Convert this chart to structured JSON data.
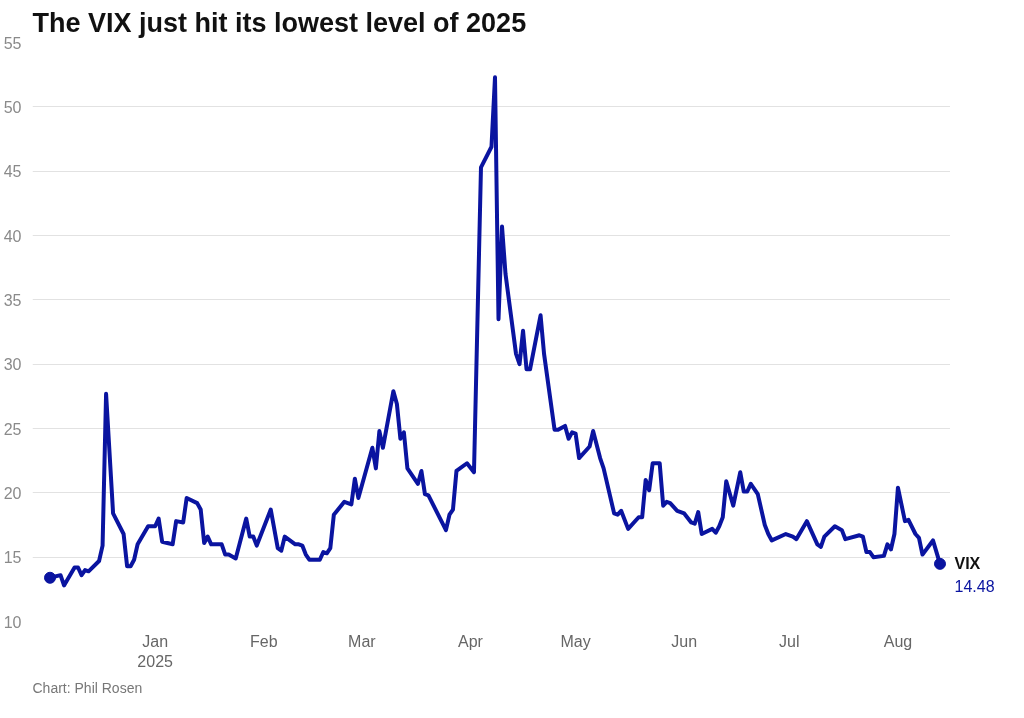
{
  "chart_data": {
    "type": "line",
    "title": "The VIX just hit its lowest level of 2025",
    "annotations": [
      "Chart: Phil Rosen"
    ],
    "x": [
      "2024-12-02",
      "2024-12-05",
      "2024-12-06",
      "2024-12-09",
      "2024-12-10",
      "2024-12-11",
      "2024-12-12",
      "2024-12-13",
      "2024-12-16",
      "2024-12-17",
      "2024-12-18",
      "2024-12-20",
      "2024-12-23",
      "2024-12-24",
      "2024-12-25",
      "2024-12-26",
      "2024-12-27",
      "2024-12-30",
      "2025-01-01",
      "2025-01-02",
      "2025-01-03",
      "2025-01-06",
      "2025-01-07",
      "2025-01-09",
      "2025-01-10",
      "2025-01-13",
      "2025-01-14",
      "2025-01-15",
      "2025-01-16",
      "2025-01-17",
      "2025-01-20",
      "2025-01-21",
      "2025-01-22",
      "2025-01-24",
      "2025-01-27",
      "2025-01-28",
      "2025-01-29",
      "2025-01-30",
      "2025-02-03",
      "2025-02-05",
      "2025-02-06",
      "2025-02-07",
      "2025-02-10",
      "2025-02-11",
      "2025-02-12",
      "2025-02-13",
      "2025-02-14",
      "2025-02-17",
      "2025-02-18",
      "2025-02-19",
      "2025-02-20",
      "2025-02-21",
      "2025-02-24",
      "2025-02-26",
      "2025-02-27",
      "2025-02-28",
      "2025-03-04",
      "2025-03-05",
      "2025-03-06",
      "2025-03-07",
      "2025-03-10",
      "2025-03-11",
      "2025-03-12",
      "2025-03-13",
      "2025-03-14",
      "2025-03-17",
      "2025-03-18",
      "2025-03-19",
      "2025-03-20",
      "2025-03-25",
      "2025-03-26",
      "2025-03-27",
      "2025-03-28",
      "2025-03-31",
      "2025-04-02",
      "2025-04-04",
      "2025-04-07",
      "2025-04-08",
      "2025-04-09",
      "2025-04-10",
      "2025-04-11",
      "2025-04-14",
      "2025-04-15",
      "2025-04-16",
      "2025-04-17",
      "2025-04-18",
      "2025-04-21",
      "2025-04-22",
      "2025-04-25",
      "2025-04-26",
      "2025-04-28",
      "2025-04-29",
      "2025-04-30",
      "2025-05-01",
      "2025-05-02",
      "2025-05-05",
      "2025-05-06",
      "2025-05-08",
      "2025-05-09",
      "2025-05-12",
      "2025-05-13",
      "2025-05-14",
      "2025-05-16",
      "2025-05-19",
      "2025-05-20",
      "2025-05-21",
      "2025-05-22",
      "2025-05-23",
      "2025-05-25",
      "2025-05-26",
      "2025-05-27",
      "2025-05-28",
      "2025-05-30",
      "2025-06-01",
      "2025-06-03",
      "2025-06-04",
      "2025-06-05",
      "2025-06-06",
      "2025-06-09",
      "2025-06-10",
      "2025-06-11",
      "2025-06-12",
      "2025-06-13",
      "2025-06-15",
      "2025-06-17",
      "2025-06-18",
      "2025-06-19",
      "2025-06-20",
      "2025-06-22",
      "2025-06-24",
      "2025-06-25",
      "2025-06-26",
      "2025-06-30",
      "2025-07-02",
      "2025-07-03",
      "2025-07-06",
      "2025-07-09",
      "2025-07-10",
      "2025-07-11",
      "2025-07-14",
      "2025-07-16",
      "2025-07-17",
      "2025-07-21",
      "2025-07-22",
      "2025-07-23",
      "2025-07-24",
      "2025-07-25",
      "2025-07-28",
      "2025-07-29",
      "2025-07-30",
      "2025-07-31",
      "2025-08-01",
      "2025-08-03",
      "2025-08-04",
      "2025-08-06",
      "2025-08-07",
      "2025-08-08",
      "2025-08-11",
      "2025-08-13"
    ],
    "series": [
      {
        "name": "VIX",
        "color": "#0a14a0",
        "values": [
          13.4,
          13.6,
          12.8,
          14.2,
          14.2,
          13.6,
          14.0,
          13.9,
          14.7,
          15.9,
          27.7,
          18.4,
          16.8,
          14.3,
          14.3,
          14.8,
          16.0,
          17.4,
          17.4,
          18.0,
          16.2,
          16.0,
          17.8,
          17.7,
          19.6,
          19.2,
          18.7,
          16.1,
          16.6,
          16.0,
          16.0,
          15.2,
          15.2,
          14.9,
          18.0,
          16.6,
          16.6,
          15.9,
          18.7,
          15.7,
          15.5,
          16.6,
          16.0,
          16.0,
          15.9,
          15.2,
          14.8,
          14.8,
          15.4,
          15.3,
          15.7,
          18.3,
          19.3,
          19.1,
          21.1,
          19.6,
          23.5,
          21.9,
          24.8,
          23.5,
          27.9,
          26.9,
          24.2,
          24.7,
          21.9,
          20.7,
          21.7,
          19.9,
          19.8,
          17.1,
          18.3,
          18.7,
          21.7,
          22.3,
          21.6,
          45.3,
          46.9,
          52.3,
          33.5,
          40.7,
          37.0,
          30.8,
          30.0,
          32.6,
          29.6,
          29.6,
          33.8,
          30.8,
          24.9,
          24.9,
          25.2,
          24.2,
          24.7,
          24.6,
          22.7,
          23.6,
          24.8,
          22.7,
          21.9,
          18.4,
          18.3,
          18.6,
          17.2,
          18.1,
          18.1,
          21.0,
          20.2,
          22.3,
          22.3,
          19.0,
          19.3,
          19.2,
          18.6,
          18.4,
          17.7,
          17.6,
          18.5,
          16.8,
          17.2,
          16.9,
          17.4,
          18.1,
          20.9,
          19.0,
          21.6,
          20.1,
          20.1,
          20.7,
          19.9,
          17.5,
          16.8,
          16.3,
          16.8,
          16.6,
          16.4,
          17.8,
          16.0,
          15.8,
          16.6,
          17.4,
          17.1,
          16.4,
          16.7,
          16.6,
          15.4,
          15.4,
          15.0,
          15.1,
          16.0,
          15.6,
          16.8,
          20.4,
          17.8,
          17.9,
          16.8,
          16.5,
          15.2,
          16.3,
          14.48
        ],
        "value_labels": [
          null,
          null,
          null,
          null,
          null,
          null,
          null,
          null,
          null,
          null,
          null,
          null,
          null,
          null,
          null,
          null,
          null,
          null,
          null,
          null,
          null,
          null,
          null,
          null,
          null,
          null,
          null,
          null,
          null,
          null,
          null,
          null,
          null,
          null,
          null,
          null,
          null,
          null,
          null,
          null,
          null,
          null,
          null,
          null,
          null,
          null,
          null,
          null,
          null,
          null,
          null,
          null,
          null,
          null,
          null,
          null,
          null,
          null,
          null,
          null,
          null,
          null,
          null,
          null,
          null,
          null,
          null,
          null,
          null,
          null,
          null,
          null,
          null,
          null,
          null,
          null,
          null,
          null,
          null,
          null,
          null,
          null,
          null,
          null,
          null,
          null,
          null,
          null,
          null,
          null,
          null,
          null,
          null,
          null,
          null,
          null,
          null,
          null,
          null,
          null,
          null,
          null,
          null,
          null,
          null,
          null,
          null,
          null,
          null,
          null,
          null,
          null,
          null,
          null,
          null,
          null,
          null,
          null,
          null,
          null,
          null,
          null,
          null,
          null,
          null,
          null,
          null,
          null,
          null,
          null,
          null,
          null,
          null,
          null,
          null,
          null,
          null,
          null,
          null,
          null,
          null,
          null,
          null,
          null,
          null,
          null,
          null,
          null,
          null,
          null,
          null,
          null,
          null,
          null,
          null,
          null,
          null,
          null,
          "14.48"
        ]
      }
    ],
    "xlim": [
      "2024-11-27",
      "2025-08-16"
    ],
    "xticks": [
      {
        "value": "2025-01-01",
        "label": "Jan\n2025"
      },
      {
        "value": "2025-02-01",
        "label": "Feb"
      },
      {
        "value": "2025-03-01",
        "label": "Mar"
      },
      {
        "value": "2025-04-01",
        "label": "Apr"
      },
      {
        "value": "2025-05-01",
        "label": "May"
      },
      {
        "value": "2025-06-01",
        "label": "Jun"
      },
      {
        "value": "2025-07-01",
        "label": "Jul"
      },
      {
        "value": "2025-08-01",
        "label": "Aug"
      }
    ],
    "ylim": [
      10,
      55
    ],
    "yticks": [
      10,
      15,
      20,
      25,
      30,
      35,
      40,
      45,
      50,
      55
    ],
    "grid": "y",
    "line_style": "solid"
  }
}
